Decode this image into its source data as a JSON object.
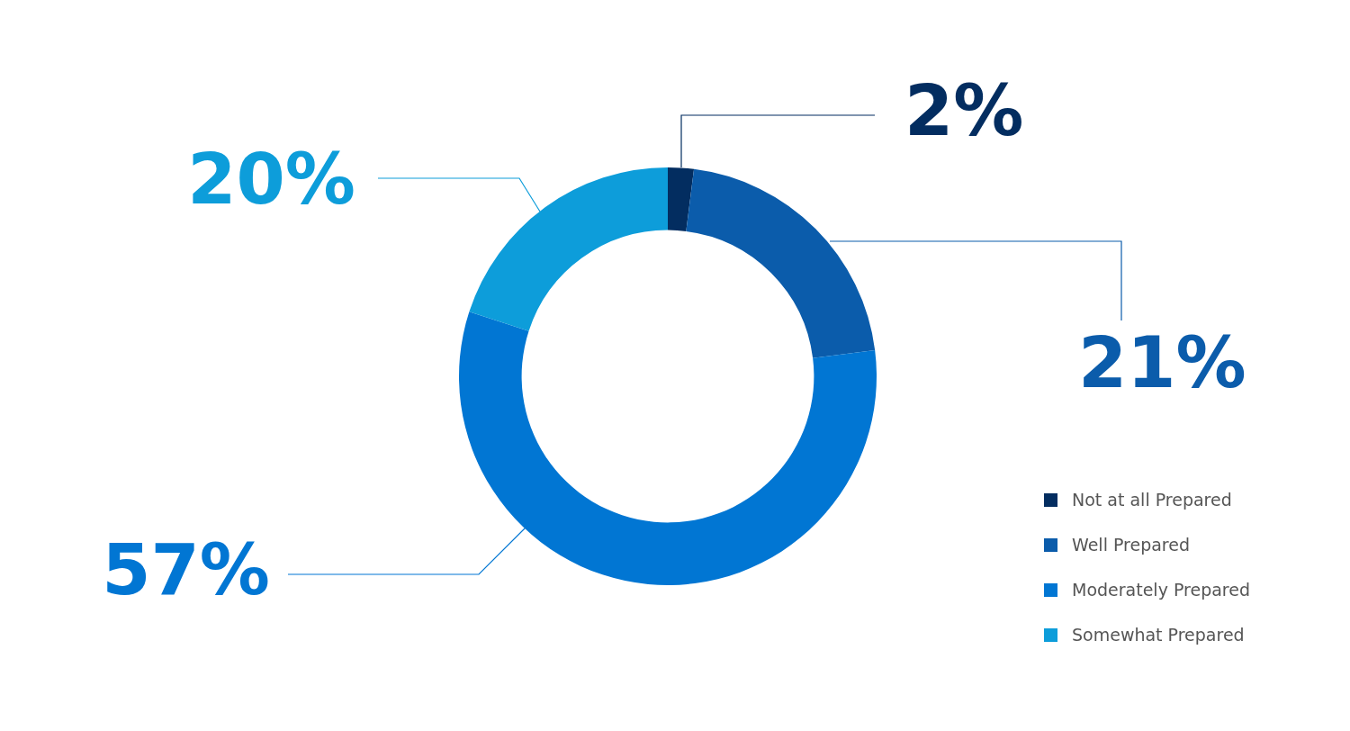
{
  "chart_data": {
    "type": "donut",
    "categories": [
      "Not at all Prepared",
      "Well Prepared",
      "Moderately Prepared",
      "Somewhat Prepared"
    ],
    "values": [
      2,
      21,
      57,
      20
    ],
    "colors": [
      "#032d60",
      "#0b5cab",
      "#0176d3",
      "#0d9dda"
    ],
    "value_labels": [
      "2%",
      "21%",
      "57%",
      "20%"
    ],
    "legend": "bottom right"
  }
}
